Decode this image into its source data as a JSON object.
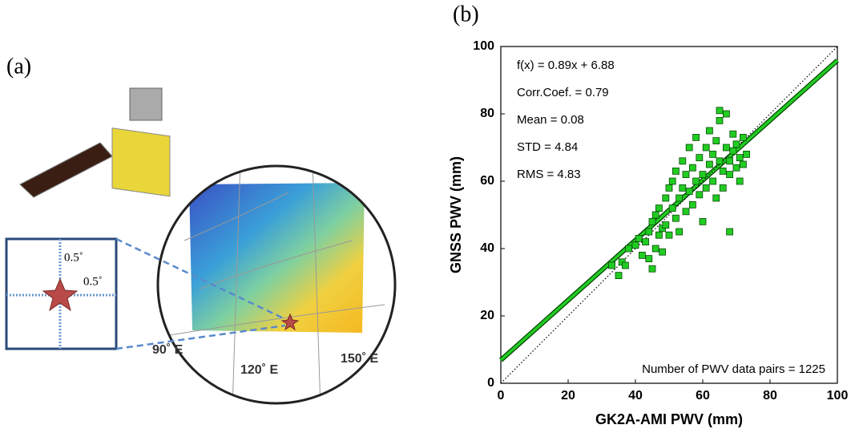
{
  "panel_a": {
    "label": "(a)",
    "zoom_labels": [
      "0.5˚",
      "0.5˚"
    ],
    "longitudes": [
      "90˚ E",
      "120˚ E",
      "150˚ E"
    ]
  },
  "chart_data": {
    "type": "scatter",
    "panel_label": "(b)",
    "xlabel": "GK2A-AMI PWV (mm)",
    "ylabel": "GNSS PWV (mm)",
    "xlim": [
      0,
      100
    ],
    "ylim": [
      0,
      100
    ],
    "xticks": [
      0,
      20,
      40,
      60,
      80,
      100
    ],
    "yticks": [
      0,
      20,
      40,
      60,
      80,
      100
    ],
    "annotations": [
      "f(x) = 0.89x + 6.88",
      "Corr.Coef. = 0.79",
      "Mean = 0.08",
      "STD = 4.84",
      "RMS = 4.83",
      "Number of PWV data pairs = 1225"
    ],
    "series": [
      {
        "color": "#22cc22",
        "x": [
          33,
          35,
          36,
          37,
          38,
          40,
          41,
          42,
          43,
          44,
          44,
          45,
          45,
          46,
          46,
          47,
          47,
          48,
          48,
          49,
          49,
          50,
          50,
          51,
          51,
          52,
          52,
          53,
          53,
          54,
          54,
          55,
          55,
          56,
          56,
          57,
          57,
          58,
          58,
          59,
          59,
          60,
          60,
          61,
          61,
          62,
          62,
          63,
          63,
          64,
          64,
          65,
          65,
          66,
          66,
          67,
          67,
          68,
          68,
          69,
          69,
          70,
          70,
          71,
          71,
          72,
          72,
          73,
          65,
          68
        ],
        "values": [
          35,
          32,
          36,
          35,
          40,
          41,
          43,
          38,
          42,
          37,
          45,
          34,
          48,
          40,
          50,
          44,
          52,
          46,
          39,
          55,
          47,
          58,
          44,
          52,
          60,
          49,
          63,
          55,
          45,
          58,
          66,
          51,
          62,
          57,
          70,
          53,
          64,
          60,
          73,
          56,
          67,
          62,
          48,
          70,
          58,
          65,
          75,
          60,
          68,
          72,
          55,
          66,
          78,
          63,
          58,
          70,
          80,
          66,
          62,
          74,
          69,
          64,
          71,
          60,
          67,
          73,
          65,
          68,
          81,
          45
        ]
      }
    ],
    "lines": [
      {
        "color": "#22cc22",
        "style": "solid",
        "x": [
          0,
          100
        ],
        "values": [
          6.88,
          95.88
        ]
      },
      {
        "color": "#000000",
        "style": "dotted",
        "x": [
          0,
          100
        ],
        "values": [
          0,
          100
        ]
      }
    ]
  }
}
